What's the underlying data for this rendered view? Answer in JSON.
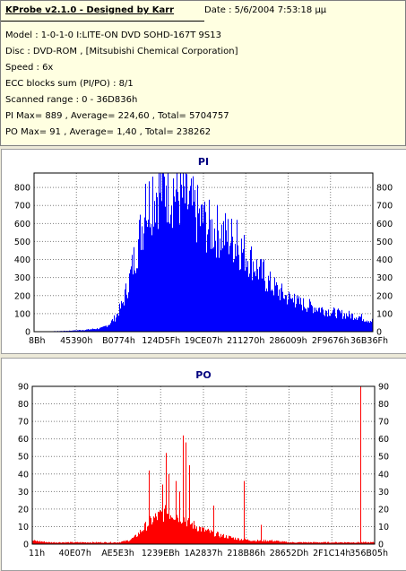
{
  "info": {
    "title": "KProbe v2.1.0 - Designed by Karr",
    "date": "Date : 5/6/2004 7:53:18 μμ",
    "lines": [
      "Model : 1-0-1-0 I:LITE-ON DVD SOHD-167T   9S13",
      "Disc : DVD-ROM ,  [Mitsubishi Chemical Corporation]",
      "Speed : 6x",
      "ECC blocks sum (PI/PO) : 8/1",
      "Scanned range : 0 - 36D836h",
      "PI Max= 889 , Average= 224,60 , Total= 5704757",
      "PO Max= 91 , Average= 1,40 , Total= 238262"
    ]
  },
  "colors": {
    "pi": "#0000ff",
    "po": "#ff0000",
    "grid": "#7f7f7f",
    "title": "#00007f"
  },
  "chart_data": [
    {
      "type": "area",
      "title": "PI",
      "color": "#0000ff",
      "ylim": [
        0,
        880
      ],
      "yticks": [
        0,
        100,
        200,
        300,
        400,
        500,
        600,
        700,
        800
      ],
      "xticks": [
        "8Bh",
        "45390h",
        "B0774h",
        "124D5Fh",
        "19CE07h",
        "211270h",
        "286009h",
        "2F9676h",
        "36B36Fh"
      ],
      "x": [
        0.0,
        0.05,
        0.1,
        0.15,
        0.2,
        0.22,
        0.24,
        0.26,
        0.28,
        0.3,
        0.32,
        0.34,
        0.36,
        0.38,
        0.4,
        0.42,
        0.44,
        0.46,
        0.48,
        0.5,
        0.52,
        0.54,
        0.56,
        0.58,
        0.6,
        0.62,
        0.64,
        0.66,
        0.68,
        0.7,
        0.72,
        0.74,
        0.76,
        0.78,
        0.8,
        0.82,
        0.84,
        0.86,
        0.88,
        0.9,
        0.92,
        0.94,
        0.96,
        0.98,
        1.0
      ],
      "values": [
        0,
        2,
        5,
        10,
        20,
        40,
        80,
        150,
        280,
        440,
        600,
        720,
        780,
        800,
        790,
        770,
        740,
        700,
        650,
        600,
        570,
        560,
        540,
        520,
        480,
        440,
        400,
        350,
        300,
        260,
        230,
        200,
        180,
        160,
        150,
        140,
        130,
        120,
        110,
        100,
        95,
        90,
        85,
        70,
        60
      ],
      "peaks": [
        [
          0.37,
          880
        ],
        [
          0.35,
          860
        ],
        [
          0.41,
          850
        ],
        [
          0.33,
          820
        ],
        [
          0.39,
          810
        ],
        [
          0.45,
          790
        ],
        [
          0.5,
          700
        ],
        [
          0.6,
          620
        ],
        [
          0.68,
          400
        ],
        [
          0.77,
          210
        ]
      ]
    },
    {
      "type": "area",
      "title": "PO",
      "color": "#ff0000",
      "ylim": [
        0,
        90
      ],
      "yticks": [
        0,
        10,
        20,
        30,
        40,
        50,
        60,
        70,
        80,
        90
      ],
      "xticks": [
        "11h",
        "40E07h",
        "AE5E3h",
        "1239EBh",
        "1A2837h",
        "218B86h",
        "28652Dh",
        "2F1C14h",
        "356B05h"
      ],
      "x": [
        0.0,
        0.05,
        0.1,
        0.15,
        0.2,
        0.25,
        0.28,
        0.3,
        0.32,
        0.34,
        0.36,
        0.38,
        0.4,
        0.42,
        0.44,
        0.46,
        0.48,
        0.5,
        0.55,
        0.6,
        0.65,
        0.7,
        0.75,
        0.8,
        0.85,
        0.9,
        0.95,
        1.0
      ],
      "values": [
        2,
        1,
        1,
        1,
        1,
        1,
        2,
        4,
        8,
        12,
        15,
        17,
        18,
        17,
        15,
        12,
        10,
        8,
        5,
        3,
        2,
        2,
        1,
        1,
        1,
        1,
        1,
        1
      ],
      "peaks": [
        [
          0.34,
          42
        ],
        [
          0.38,
          34
        ],
        [
          0.39,
          52
        ],
        [
          0.4,
          40
        ],
        [
          0.42,
          36
        ],
        [
          0.44,
          62
        ],
        [
          0.45,
          58
        ],
        [
          0.46,
          45
        ],
        [
          0.62,
          36
        ],
        [
          0.43,
          30
        ],
        [
          0.53,
          22
        ],
        [
          0.67,
          11
        ],
        [
          0.96,
          90
        ]
      ]
    }
  ]
}
